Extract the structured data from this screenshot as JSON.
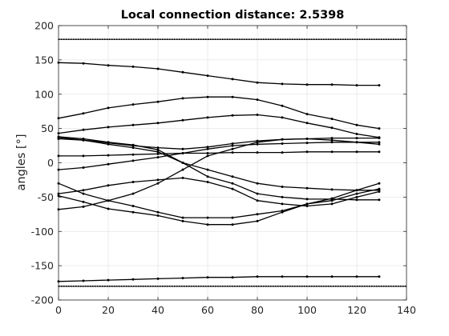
{
  "chart_data": {
    "type": "line",
    "title": "Local connection distance: 2.5398",
    "xlabel": "",
    "ylabel": "angles [°]",
    "xlim": [
      0,
      140
    ],
    "ylim": [
      -200,
      200
    ],
    "xticks": [
      0,
      20,
      40,
      60,
      80,
      100,
      120,
      140
    ],
    "yticks": [
      -200,
      -150,
      -100,
      -50,
      0,
      50,
      100,
      150,
      200
    ],
    "grid": true,
    "line_color": "#000000",
    "marker": "dot",
    "reference_lines": [
      {
        "y": 180,
        "style": "dotted"
      },
      {
        "y": -180,
        "style": "dotted"
      }
    ],
    "series": [
      {
        "x": [
          0,
          10,
          20,
          30,
          40,
          50,
          60,
          70,
          80,
          90,
          100,
          110,
          120,
          129
        ],
        "values": [
          146,
          145,
          142,
          140,
          137,
          132,
          127,
          122,
          117,
          115,
          114,
          114,
          113,
          113
        ]
      },
      {
        "x": [
          0,
          10,
          20,
          30,
          40,
          50,
          60,
          70,
          80,
          90,
          100,
          110,
          120,
          129
        ],
        "values": [
          65,
          72,
          80,
          85,
          89,
          94,
          96,
          96,
          92,
          83,
          71,
          64,
          55,
          50
        ]
      },
      {
        "x": [
          0,
          10,
          20,
          30,
          40,
          50,
          60,
          70,
          80,
          90,
          100,
          110,
          120,
          129
        ],
        "values": [
          43,
          48,
          52,
          55,
          58,
          62,
          66,
          69,
          70,
          66,
          58,
          51,
          42,
          37
        ]
      },
      {
        "x": [
          0,
          10,
          20,
          30,
          40,
          50,
          60,
          70,
          80,
          90,
          100,
          110,
          120,
          129
        ],
        "values": [
          37,
          33,
          27,
          22,
          16,
          0,
          -10,
          -20,
          -30,
          -35,
          -37,
          -39,
          -40,
          -40
        ]
      },
      {
        "x": [
          0,
          10,
          20,
          30,
          40,
          50,
          60,
          70,
          80,
          90,
          100,
          110,
          120,
          129
        ],
        "values": [
          35,
          33,
          29,
          25,
          22,
          20,
          23,
          28,
          32,
          34,
          35,
          36,
          36,
          36
        ]
      },
      {
        "x": [
          0,
          10,
          20,
          30,
          40,
          50,
          60,
          70,
          80,
          90,
          100,
          110,
          120,
          129
        ],
        "values": [
          38,
          35,
          30,
          26,
          19,
          0,
          -20,
          -30,
          -45,
          -50,
          -53,
          -53,
          -54,
          -54
        ]
      },
      {
        "x": [
          0,
          10,
          20,
          30,
          40,
          50,
          60,
          70,
          80,
          90,
          100,
          110,
          120,
          129
        ],
        "values": [
          10,
          10,
          11,
          12,
          13,
          14,
          14,
          15,
          15,
          15,
          16,
          16,
          16,
          16
        ]
      },
      {
        "x": [
          0,
          10,
          20,
          30,
          40,
          50,
          60,
          70,
          80,
          90,
          100,
          110,
          120,
          129
        ],
        "values": [
          -10,
          -7,
          -2,
          3,
          8,
          14,
          20,
          25,
          27,
          28,
          29,
          30,
          30,
          30
        ]
      },
      {
        "x": [
          0,
          10,
          20,
          30,
          40,
          50,
          60,
          70,
          80,
          90,
          100,
          110,
          120,
          129
        ],
        "values": [
          -45,
          -40,
          -33,
          -28,
          -25,
          -22,
          -28,
          -38,
          -55,
          -60,
          -63,
          -60,
          -50,
          -42
        ]
      },
      {
        "x": [
          0,
          10,
          20,
          30,
          40,
          50,
          60,
          70,
          80,
          90,
          100,
          110,
          120,
          129
        ],
        "values": [
          -48,
          -57,
          -67,
          -72,
          -77,
          -85,
          -90,
          -90,
          -85,
          -72,
          -60,
          -55,
          -45,
          -38
        ]
      },
      {
        "x": [
          0,
          10,
          20,
          30,
          40,
          50,
          60,
          70,
          80,
          90,
          100,
          110,
          120,
          129
        ],
        "values": [
          -68,
          -64,
          -55,
          -45,
          -30,
          -10,
          10,
          20,
          30,
          34,
          35,
          33,
          30,
          27
        ]
      },
      {
        "x": [
          0,
          10,
          20,
          30,
          40,
          50,
          60,
          70,
          80,
          90,
          100,
          110,
          120,
          129
        ],
        "values": [
          -30,
          -45,
          -55,
          -63,
          -72,
          -80,
          -80,
          -80,
          -75,
          -70,
          -60,
          -52,
          -40,
          -30
        ]
      },
      {
        "x": [
          0,
          10,
          20,
          30,
          40,
          50,
          60,
          70,
          80,
          90,
          100,
          110,
          120,
          129
        ],
        "values": [
          -173,
          -172,
          -171,
          -170,
          -169,
          -168,
          -167,
          -167,
          -166,
          -166,
          -166,
          -166,
          -166,
          -166
        ]
      }
    ]
  }
}
